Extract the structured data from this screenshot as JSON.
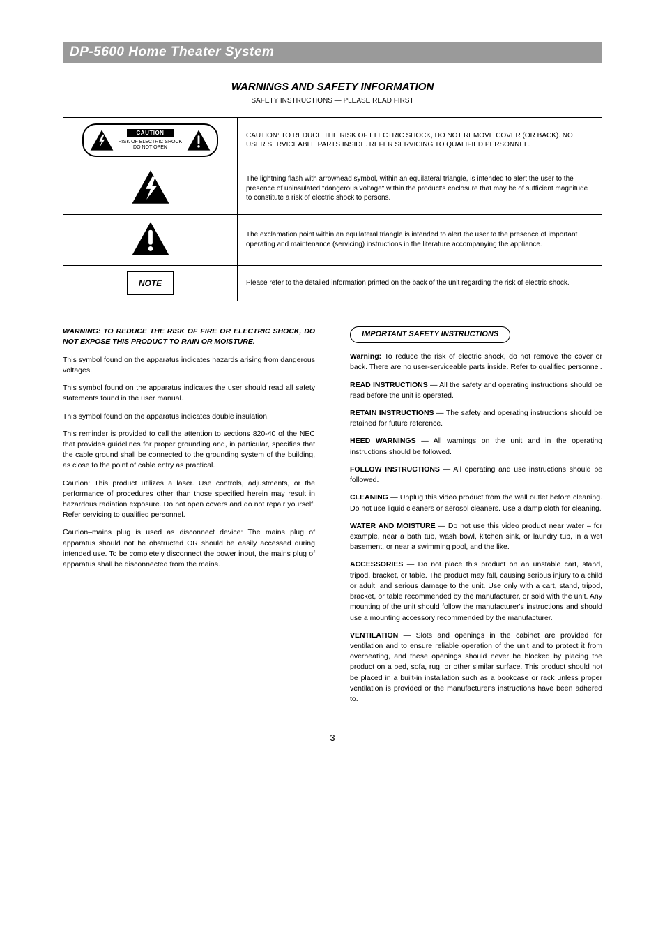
{
  "header": "DP-5600 Home Theater System",
  "safety": {
    "title": "WARNINGS AND SAFETY INFORMATION",
    "subtitle": "SAFETY INSTRUCTIONS — PLEASE READ FIRST",
    "row1": {
      "caution_label": "CAUTION",
      "caution_line1": "RISK OF ELECTRIC SHOCK",
      "caution_line2": "DO NOT OPEN",
      "text": "CAUTION: TO REDUCE THE RISK OF ELECTRIC SHOCK, DO NOT REMOVE COVER (OR BACK). NO USER SERVICEABLE PARTS INSIDE. REFER SERVICING TO QUALIFIED PERSONNEL."
    },
    "row2": "The lightning flash with arrowhead symbol, within an equilateral triangle, is intended to alert the user to the presence of uninsulated \"dangerous voltage\" within the product's enclosure that may be of sufficient magnitude to constitute a risk of electric shock to persons.",
    "row3": "The exclamation point within an equilateral triangle is intended to alert the user to the presence of important operating and maintenance (servicing) instructions in the literature accompanying the appliance.",
    "row4_label": "NOTE",
    "row4": "Please refer to the detailed information printed on the back of the unit regarding the risk of electric shock."
  },
  "left": {
    "warn": "WARNING: TO REDUCE THE RISK OF FIRE OR ELECTRIC SHOCK, DO NOT EXPOSE THIS PRODUCT TO RAIN OR MOISTURE.",
    "p1a": "This symbol found on the apparatus indicates hazards arising from dangerous voltages.",
    "p1b": "This symbol found on the apparatus indicates the user should read all safety statements found in the user manual.",
    "p1c": "This symbol found on the apparatus indicates double insulation.",
    "p1d": "This reminder is provided to call the attention to sections 820-40 of the NEC that provides guidelines for proper grounding and, in particular, specifies that the cable ground shall be connected to the grounding system of the building, as close to the point of cable entry as practical.",
    "laser": "Caution: This product utilizes a laser. Use controls, adjustments, or the performance of procedures other than those specified herein may result in hazardous radiation exposure. Do not open covers and do not repair yourself. Refer servicing to qualified personnel.",
    "plug": "Caution–mains plug is used as disconnect device: The mains plug of apparatus should not be obstructed OR should be easily accessed during intended use. To be completely disconnect the power input, the mains plug of apparatus shall be disconnected from the mains."
  },
  "right": {
    "box": "IMPORTANT SAFETY INSTRUCTIONS",
    "warning_word": "Warning:",
    "warning_rest": " To reduce the risk of electric shock, do not remove the cover or back. There are no user-serviceable parts inside. Refer to qualified personnel.",
    "items": [
      {
        "b": "READ INSTRUCTIONS",
        "t": " — All the safety and operating instructions should be read before the unit is operated."
      },
      {
        "b": "RETAIN INSTRUCTIONS",
        "t": " — The safety and operating instructions should be retained for future reference."
      },
      {
        "b": "HEED WARNINGS",
        "t": " — All warnings on the unit and in the operating instructions should be followed."
      },
      {
        "b": "FOLLOW INSTRUCTIONS",
        "t": " — All operating and use instructions should be followed."
      },
      {
        "b": "CLEANING",
        "t": " — Unplug this video product from the wall outlet before cleaning. Do not use liquid cleaners or aerosol cleaners. Use a damp cloth for cleaning."
      },
      {
        "b": "WATER AND MOISTURE",
        "t": " — Do not use this video product near water – for example, near a bath tub, wash bowl, kitchen sink, or laundry tub, in a wet basement, or near a swimming pool, and the like."
      },
      {
        "b": "ACCESSORIES",
        "t": " — Do not place this product on an unstable cart, stand, tripod, bracket, or table. The product may fall, causing serious injury to a child or adult, and serious damage to the unit. Use only with a cart, stand, tripod, bracket, or table recommended by the manufacturer, or sold with the unit. Any mounting of the unit should follow the manufacturer's instructions and should use a mounting accessory recommended by the manufacturer."
      },
      {
        "b": "VENTILATION",
        "t": " — Slots and openings in the cabinet are provided for ventilation and to ensure reliable operation of the unit and to protect it from overheating, and these openings should never be blocked by placing the product on a bed, sofa, rug, or other similar surface. This product should not be placed in a built-in installation such as a bookcase or rack unless proper ventilation is provided or the manufacturer's instructions have been adhered to."
      }
    ]
  },
  "page_number": "3"
}
